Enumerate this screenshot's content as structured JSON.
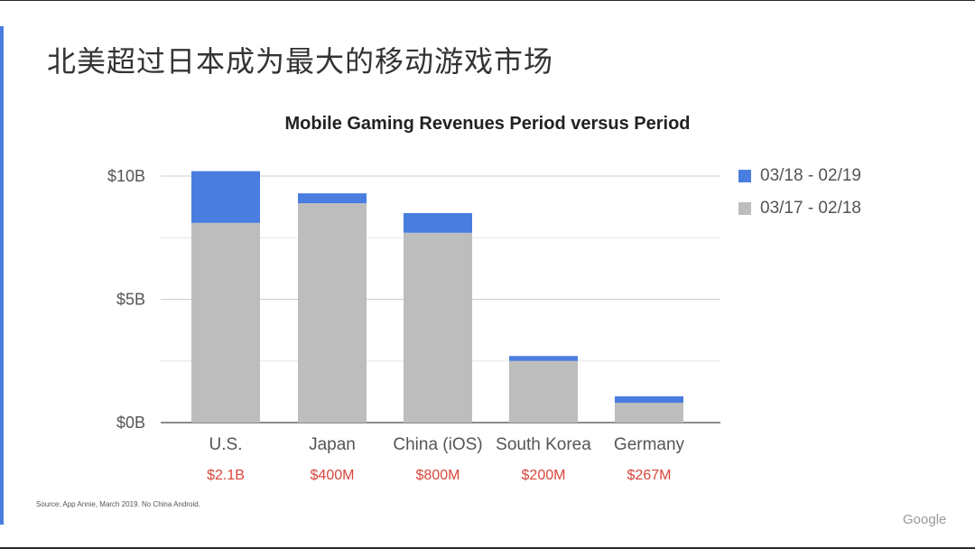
{
  "slide": {
    "title": "北美超过日本成为最大的移动游戏市场",
    "source": "Source:  App Annie, March 2019. No China Android.",
    "brand": "Google"
  },
  "chart_data": {
    "type": "bar",
    "stacked": true,
    "title": "Mobile Gaming Revenues Period versus Period",
    "categories": [
      "U.S.",
      "Japan",
      "China (iOS)",
      "South Korea",
      "Germany"
    ],
    "series": [
      {
        "name": "03/17 - 02/18",
        "color": "#bdbdbd",
        "values": [
          8.1,
          8.9,
          7.7,
          2.5,
          0.8
        ]
      },
      {
        "name": "03/18 - 02/19",
        "color": "#4a7de0",
        "values": [
          2.1,
          0.4,
          0.8,
          0.2,
          0.267
        ]
      }
    ],
    "annotations": [
      "$2.1B",
      "$400M",
      "$800M",
      "$200M",
      "$267M"
    ],
    "annotation_color": "#d9453b",
    "yticks": [
      {
        "value": 0,
        "label": "$0B"
      },
      {
        "value": 5,
        "label": "$5B"
      },
      {
        "value": 10,
        "label": "$10B"
      }
    ],
    "ylim": [
      0,
      10
    ],
    "grid": true,
    "legend_position": "right"
  }
}
